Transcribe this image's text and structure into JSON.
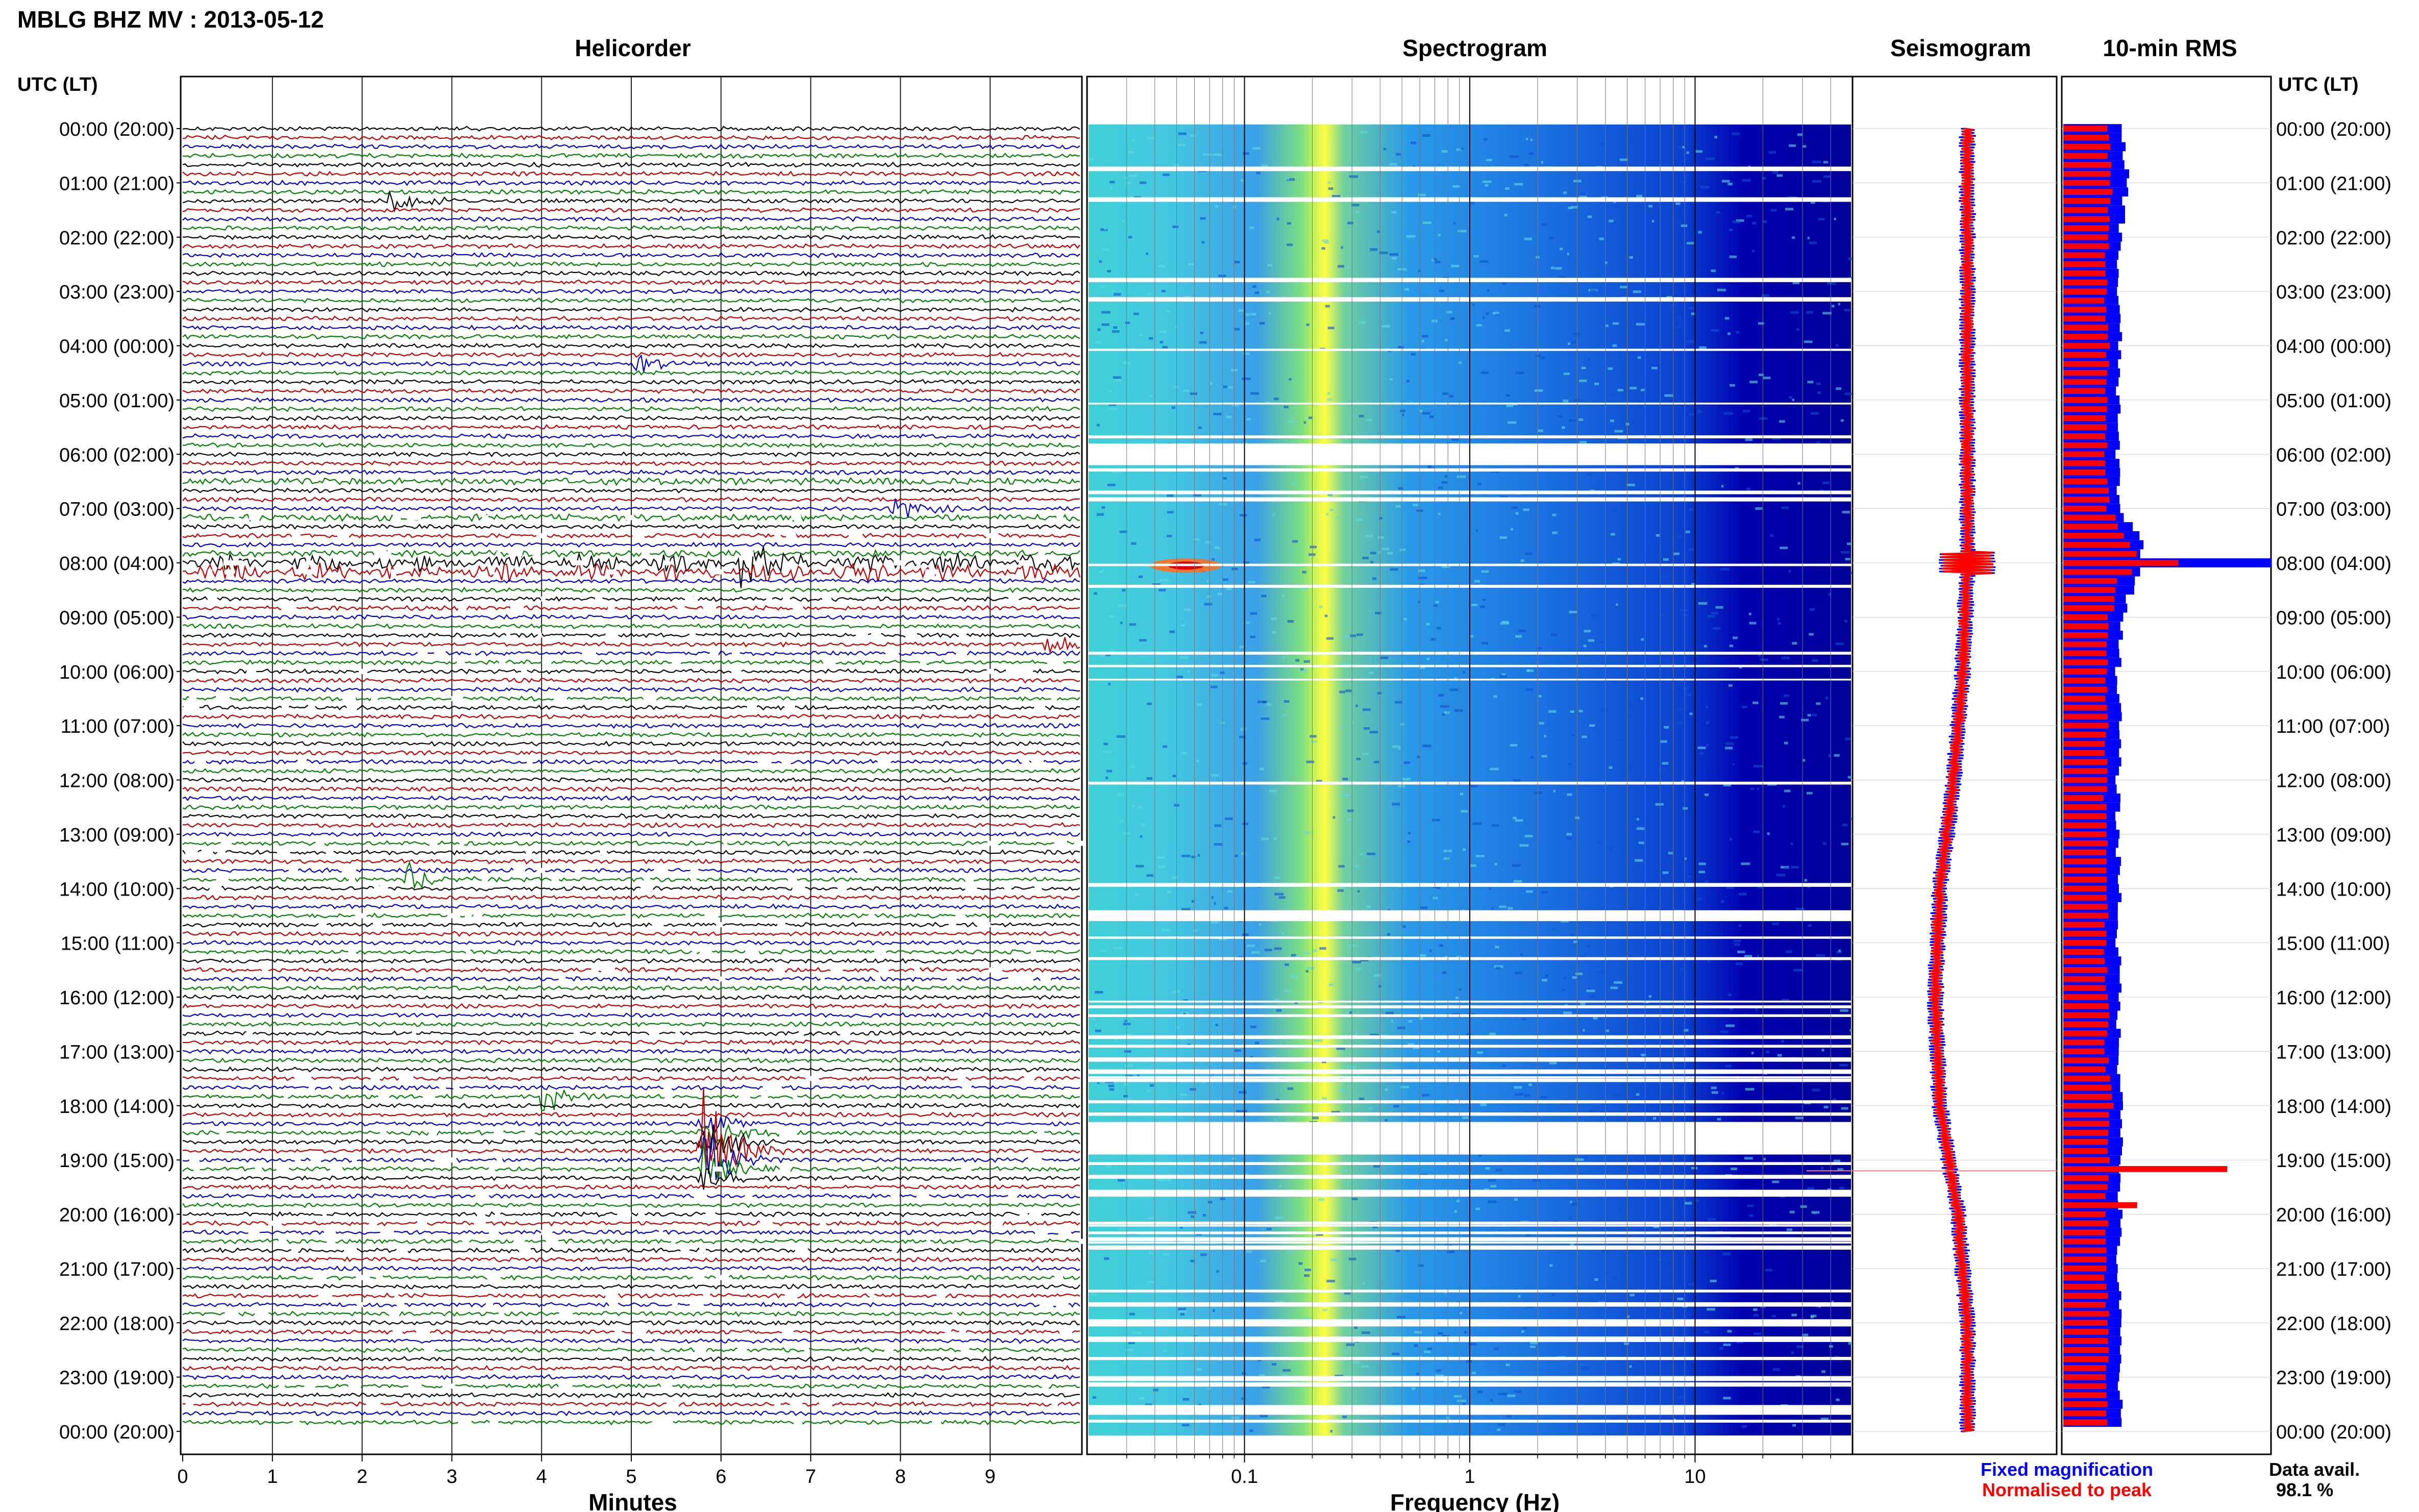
{
  "header": {
    "station_title": "MBLG BHZ MV : 2013-05-12",
    "panel_titles": [
      "Helicorder",
      "Spectrogram",
      "Seismogram",
      "10-min RMS"
    ],
    "utc_label_left": "UTC (LT)",
    "utc_label_right": "UTC (LT)"
  },
  "time_labels": [
    "00:00 (20:00)",
    "01:00 (21:00)",
    "02:00 (22:00)",
    "03:00 (23:00)",
    "04:00 (00:00)",
    "05:00 (01:00)",
    "06:00 (02:00)",
    "07:00 (03:00)",
    "08:00 (04:00)",
    "09:00 (05:00)",
    "10:00 (06:00)",
    "11:00 (07:00)",
    "12:00 (08:00)",
    "13:00 (09:00)",
    "14:00 (10:00)",
    "15:00 (11:00)",
    "16:00 (12:00)",
    "17:00 (13:00)",
    "18:00 (14:00)",
    "19:00 (15:00)",
    "20:00 (16:00)",
    "21:00 (17:00)",
    "22:00 (18:00)",
    "23:00 (19:00)",
    "00:00 (20:00)"
  ],
  "footer": {
    "legend_fixed": "Fixed magnification",
    "legend_normalised": "Normalised to peak",
    "data_avail_label": "Data avail.",
    "data_avail_value": "98.1 %"
  },
  "colors": {
    "trace_cycle": [
      "#000000",
      "#c00000",
      "#0000c8",
      "#008000"
    ],
    "fixed": "#0000ff",
    "normalised": "#ff0000",
    "spectrogram_low": "#0000a0",
    "spectrogram_high": "#ffff00"
  },
  "chart_data": [
    {
      "type": "line",
      "panel": "Helicorder",
      "xlabel": "Minutes",
      "x_ticks": [
        "0",
        "1",
        "2",
        "3",
        "4",
        "5",
        "6",
        "7",
        "8",
        "9"
      ],
      "xlim": [
        0,
        10
      ],
      "rows": 144,
      "minutes_per_row": 10,
      "events": [
        {
          "hour": 1.3,
          "minute": 2.3,
          "amp": 0.6
        },
        {
          "hour": 4.3,
          "minute": 5.0,
          "amp": 0.5
        },
        {
          "hour": 7.0,
          "minute": 7.9,
          "amp": 0.7
        },
        {
          "hour": 8.0,
          "minute": 6.2,
          "amp": 1.0
        },
        {
          "hour": 9.5,
          "minute": 9.6,
          "amp": 0.5
        },
        {
          "hour": 13.8,
          "minute": 2.5,
          "amp": 0.6
        },
        {
          "hour": 17.8,
          "minute": 4.0,
          "amp": 0.8
        },
        {
          "hour": 18.8,
          "minute": 5.8,
          "amp": 3.0
        }
      ]
    },
    {
      "type": "heatmap",
      "panel": "Spectrogram",
      "xlabel": "Frequency (Hz)",
      "x_scale": "log",
      "x_ticks": [
        "0.1",
        "1",
        "10"
      ],
      "xlim": [
        0.02,
        50
      ],
      "peak_frequency_hz": 0.27,
      "data_gaps_hours": [
        [
          5.8,
          6.2
        ],
        [
          14.4,
          14.6
        ],
        [
          18.3,
          18.9
        ]
      ]
    },
    {
      "type": "line",
      "panel": "Seismogram",
      "series": [
        {
          "name": "Fixed magnification",
          "hours": [
            0,
            2,
            4,
            6,
            8,
            10,
            12,
            14,
            16,
            18,
            20,
            22,
            24
          ],
          "offset": [
            0,
            0,
            0,
            0,
            0,
            -0.1,
            -0.3,
            -0.6,
            -0.7,
            -0.6,
            -0.2,
            0,
            0
          ]
        },
        {
          "name": "Normalised to peak",
          "hours": [
            0,
            2,
            4,
            6,
            8,
            10,
            12,
            14,
            16,
            18,
            20,
            22,
            24
          ],
          "offset": [
            0,
            0,
            0,
            0,
            0,
            -0.1,
            -0.3,
            -0.6,
            -0.7,
            -0.6,
            -0.2,
            0,
            0
          ]
        }
      ],
      "marker_hour": 19.2
    },
    {
      "type": "bar",
      "panel": "10-min RMS",
      "series": [
        {
          "name": "Fixed magnification",
          "hours": [
            0,
            1,
            2,
            3,
            4,
            5,
            6,
            7,
            7.7,
            8,
            8.3,
            9,
            10,
            11,
            12,
            13,
            14,
            15,
            16,
            17,
            18,
            19,
            19.2,
            20,
            21,
            22,
            23,
            24
          ],
          "values": [
            0.28,
            0.32,
            0.28,
            0.27,
            0.28,
            0.27,
            0.27,
            0.28,
            0.4,
            1.0,
            0.35,
            0.3,
            0.27,
            0.28,
            0.27,
            0.27,
            0.28,
            0.27,
            0.28,
            0.27,
            0.3,
            0.28,
            0.28,
            0.28,
            0.27,
            0.28,
            0.28,
            0.28
          ]
        },
        {
          "name": "Normalised to peak",
          "hours": [
            0,
            1,
            2,
            3,
            4,
            5,
            6,
            7,
            7.7,
            8,
            8.3,
            9,
            10,
            11,
            12,
            13,
            14,
            15,
            16,
            17,
            18,
            19,
            19.2,
            20,
            21,
            22,
            23,
            24
          ],
          "values": [
            0.22,
            0.24,
            0.22,
            0.21,
            0.22,
            0.21,
            0.21,
            0.22,
            0.35,
            0.6,
            0.28,
            0.23,
            0.21,
            0.22,
            0.21,
            0.21,
            0.22,
            0.21,
            0.22,
            0.21,
            0.24,
            0.22,
            0.98,
            0.22,
            0.21,
            0.22,
            0.22,
            0.22
          ]
        }
      ]
    }
  ]
}
